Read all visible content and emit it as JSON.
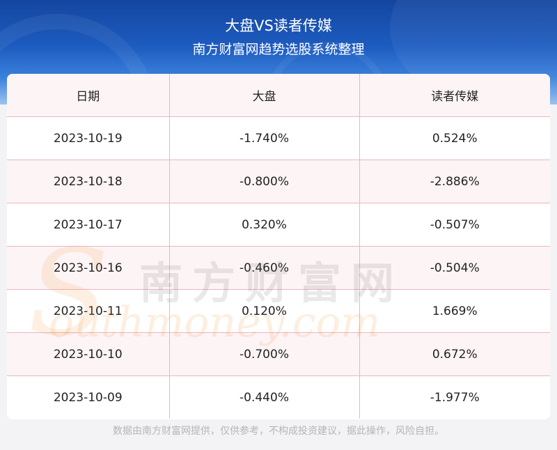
{
  "header": {
    "title": "大盘VS读者传媒",
    "subtitle": "南方财富网趋势选股系统整理"
  },
  "table": {
    "columns": [
      "日期",
      "大盘",
      "读者传媒"
    ],
    "rows": [
      [
        "2023-10-19",
        "-1.740%",
        "0.524%"
      ],
      [
        "2023-10-18",
        "-0.800%",
        "-2.886%"
      ],
      [
        "2023-10-17",
        "0.320%",
        "-0.507%"
      ],
      [
        "2023-10-16",
        "-0.460%",
        "-0.504%"
      ],
      [
        "2023-10-11",
        "0.120%",
        "1.669%"
      ],
      [
        "2023-10-10",
        "-0.700%",
        "0.672%"
      ],
      [
        "2023-10-09",
        "-0.440%",
        "-1.977%"
      ]
    ]
  },
  "watermark": {
    "cn": "南方财富网",
    "en": "outhmoney.com",
    "initial": "S"
  },
  "footer": {
    "disclaimer": "数据由南方财富网提供，仅供参考，不构成投资建议，据此操作，风险自担。"
  },
  "colors": {
    "banner": "#1d5cc0",
    "grid_line": "#e9b6c0",
    "row_tint": "#fdf4f5"
  }
}
